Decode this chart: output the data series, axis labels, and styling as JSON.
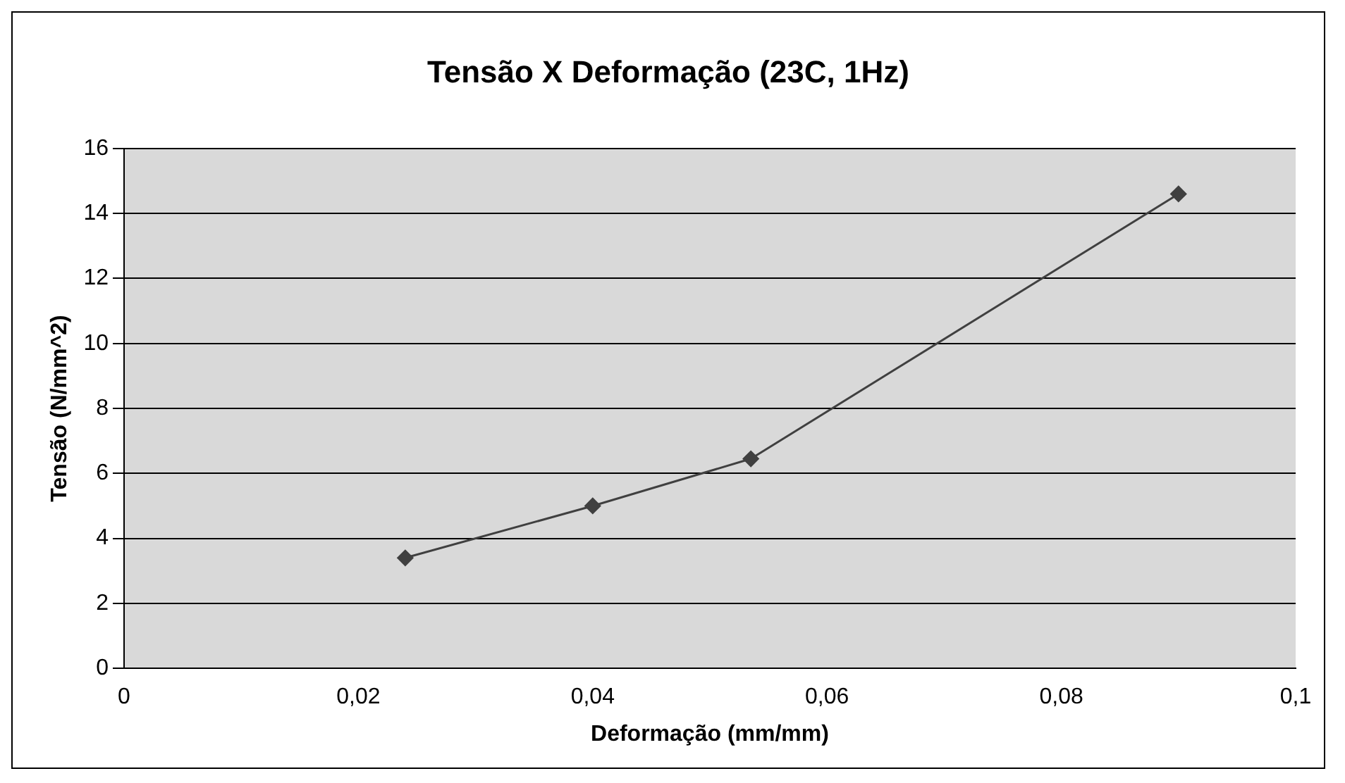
{
  "chart_data": {
    "type": "line",
    "title": "Tensão X Deformação (23C, 1Hz)",
    "xlabel": "Deformação (mm/mm)",
    "ylabel": "Tensão (N/mm^2)",
    "series": [
      {
        "color": "#404040",
        "x": [
          0.024,
          0.04,
          0.0535,
          0.09
        ],
        "values": [
          3.4,
          5.0,
          6.45,
          14.6
        ]
      }
    ],
    "xlim": [
      0,
      0.1
    ],
    "xticks": [
      0,
      {
        "value": 0.02,
        "label": "0,02"
      },
      {
        "value": 0.04,
        "label": "0,04"
      },
      {
        "value": 0.06,
        "label": "0,06"
      },
      {
        "value": 0.08,
        "label": "0,08"
      },
      {
        "value": 0.1,
        "label": "0,1"
      }
    ],
    "ylim": [
      0,
      16
    ],
    "yticks": [
      0,
      2,
      4,
      6,
      8,
      10,
      12,
      14,
      16
    ],
    "grid": "y",
    "marker": "diamond",
    "legend": false
  }
}
